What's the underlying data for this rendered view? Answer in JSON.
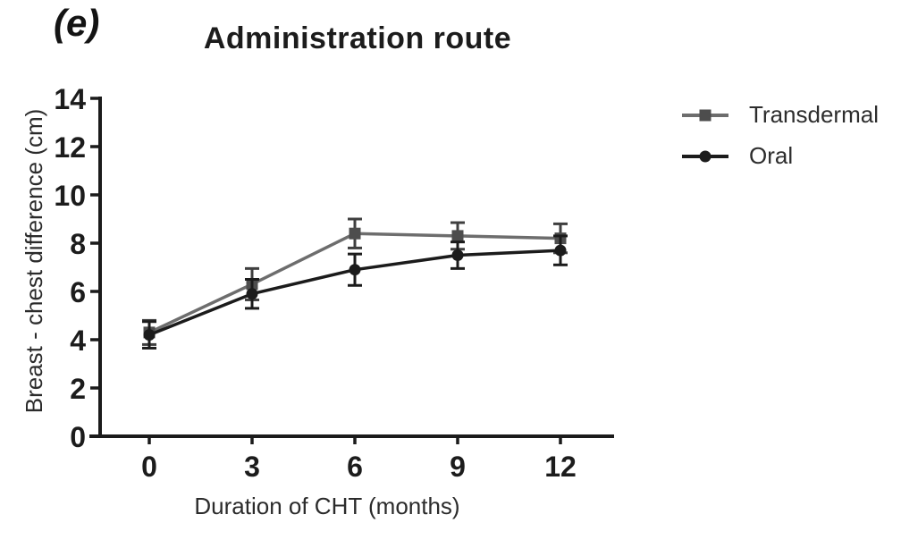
{
  "figure": {
    "panel_label": "(e)"
  },
  "chart_data": {
    "type": "line",
    "title": "Administration route",
    "xlabel": "Duration of CHT (months)",
    "ylabel": "Breast - chest difference (cm)",
    "x": [
      0,
      3,
      6,
      9,
      12
    ],
    "xticks": [
      0,
      3,
      6,
      9,
      12
    ],
    "yticks": [
      0,
      2,
      4,
      6,
      8,
      10,
      12,
      14
    ],
    "xlim": [
      0,
      12
    ],
    "ylim": [
      0,
      14
    ],
    "grid": false,
    "legend_position": "right-top",
    "axis_color": "#1b1b1b",
    "tick_label_color": "#1c1c1c",
    "axis_title_color": "#2b2b2b",
    "series": [
      {
        "name": "Transdermal",
        "marker": "square",
        "color": "#6d6d6d",
        "marker_color": "#4d4d4d",
        "error_color": "#3f3f3f",
        "values": [
          4.3,
          6.3,
          8.4,
          8.3,
          8.2
        ],
        "errors": [
          0.5,
          0.65,
          0.6,
          0.55,
          0.6
        ]
      },
      {
        "name": "Oral",
        "marker": "circle",
        "color": "#1b1b1b",
        "marker_color": "#1b1b1b",
        "error_color": "#1b1b1b",
        "values": [
          4.2,
          5.9,
          6.9,
          7.5,
          7.7
        ],
        "errors": [
          0.55,
          0.6,
          0.65,
          0.55,
          0.6
        ]
      }
    ]
  }
}
